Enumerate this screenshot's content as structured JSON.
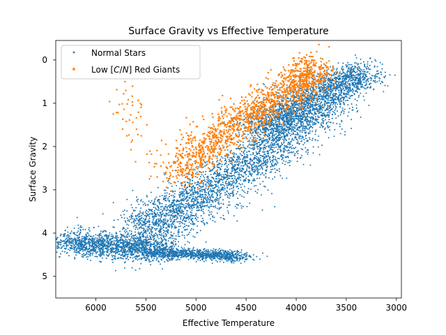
{
  "chart_data": {
    "type": "scatter",
    "title": "Surface Gravity vs Effective Temperature",
    "xlabel": "Effective Temperature",
    "ylabel": "Surface Gravity",
    "xlim": [
      6400,
      2950
    ],
    "ylim": [
      5.5,
      -0.45
    ],
    "x_inverted": true,
    "y_inverted": true,
    "xticks": [
      6000,
      5500,
      5000,
      4500,
      4000,
      3500,
      3000
    ],
    "yticks": [
      0,
      1,
      2,
      3,
      4,
      5
    ],
    "grid": false,
    "legend_position": "top-left",
    "series": [
      {
        "name": "Normal Stars",
        "color": "#1f77b4",
        "marker": "dot",
        "regions": [
          {
            "x": [
              6300,
              5800,
              5300
            ],
            "y": [
              4.2,
              4.3,
              4.4
            ]
          },
          {
            "x": [
              5400,
              4900,
              4580
            ],
            "y": [
              4.45,
              4.5,
              4.55
            ]
          },
          {
            "x": [
              5600,
              5100,
              4600,
              4100,
              3600
            ],
            "y": [
              3.9,
              3.4,
              2.6,
              1.7,
              0.8
            ]
          },
          {
            "x": [
              4400,
              4000,
              3600,
              3300
            ],
            "y": [
              1.6,
              1.1,
              0.6,
              0.3
            ]
          }
        ]
      },
      {
        "name": "Low [C/N] Red Giants",
        "color": "#ff7f0e",
        "marker": "square",
        "regions": [
          {
            "x": [
              5200,
              4800,
              4400,
              4000,
              3800
            ],
            "y": [
              2.6,
              1.8,
              1.2,
              0.6,
              0.2
            ]
          },
          {
            "x": [
              5750,
              5600,
              5450
            ],
            "y": [
              0.7,
              1.4,
              2.3
            ]
          }
        ]
      }
    ]
  }
}
